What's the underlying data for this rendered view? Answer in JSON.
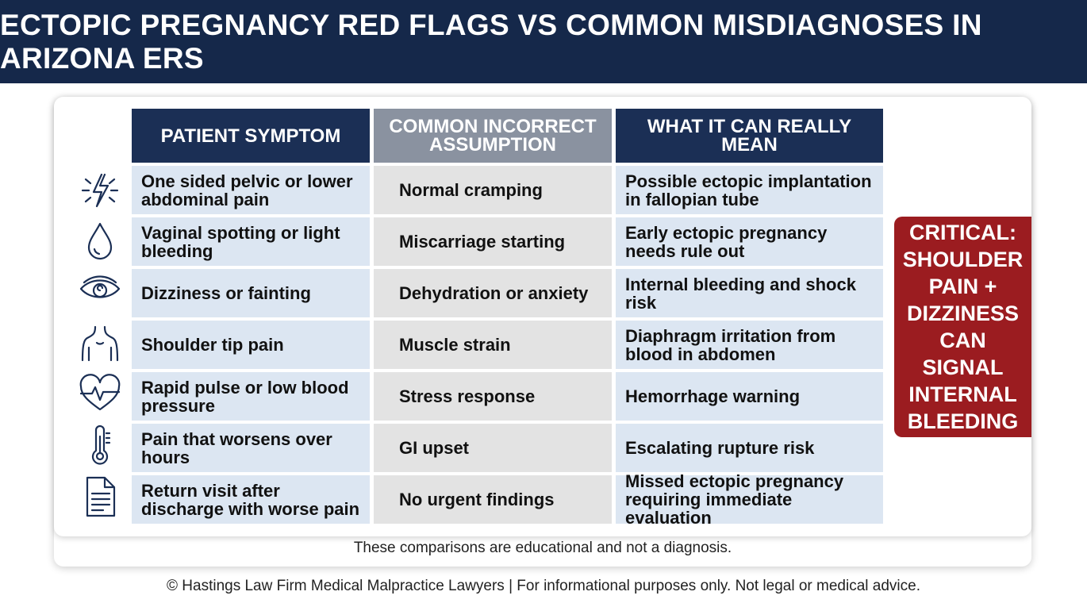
{
  "header": {
    "title": "ECTOPIC PREGNANCY RED FLAGS VS COMMON MISDIAGNOSES IN ARIZONA ERS"
  },
  "table": {
    "headers": [
      "PATIENT SYMPTOM",
      "COMMON INCORRECT ASSUMPTION",
      "WHAT IT CAN REALLY MEAN"
    ],
    "rows": [
      [
        "One sided pelvic or lower abdominal pain",
        "Normal cramping",
        "Possible ectopic implantation in fallopian tube"
      ],
      [
        "Vaginal spotting or light bleeding",
        "Miscarriage starting",
        "Early ectopic pregnancy needs rule out"
      ],
      [
        "Dizziness or fainting",
        "Dehydration or anxiety",
        "Internal bleeding and shock risk"
      ],
      [
        "Shoulder tip pain",
        "Muscle strain",
        "Diaphragm irritation from blood in abdomen"
      ],
      [
        "Rapid pulse or low blood pressure",
        "Stress response",
        "Hemorrhage warning"
      ],
      [
        "Pain that worsens over hours",
        "GI upset",
        "Escalating rupture risk"
      ],
      [
        "Return visit after discharge with worse pain",
        "No urgent findings",
        "Missed ectopic pregnancy requiring immediate evaluation"
      ]
    ]
  },
  "callout": "CRITICAL: SHOULDER PAIN + DIZZINESS CAN SIGNAL INTERNAL BLEEDING",
  "note": "These comparisons are educational and not a diagnosis.",
  "footer": "© Hastings Law Firm Medical Malpractice Lawyers | For informational purposes only. Not legal or medical advice."
}
